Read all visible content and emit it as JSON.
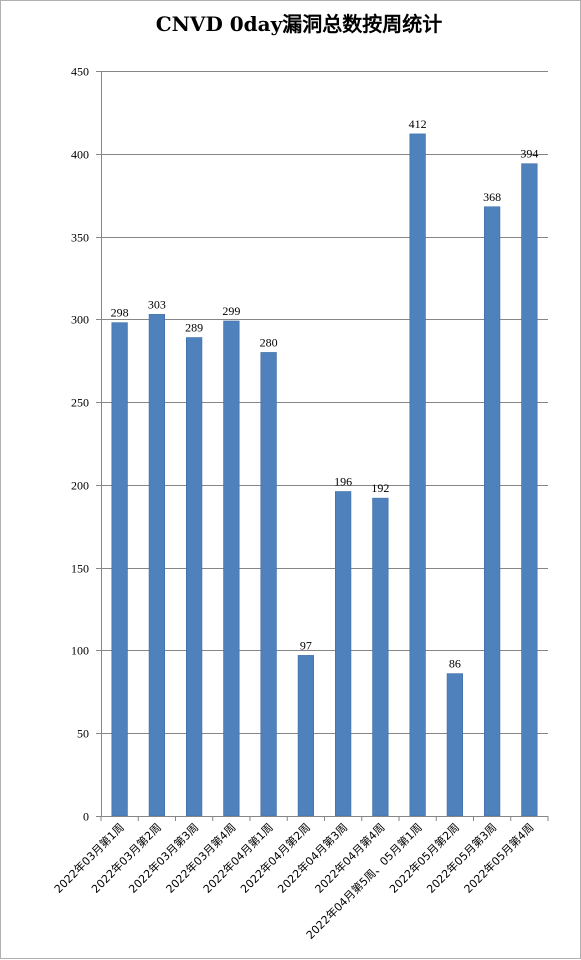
{
  "chart_data": {
    "type": "bar",
    "title": "CNVD 0day漏洞总数按周统计",
    "xlabel": "",
    "ylabel": "",
    "ylim": [
      0,
      450
    ],
    "yticks": [
      0,
      50,
      100,
      150,
      200,
      250,
      300,
      350,
      400,
      450
    ],
    "grid": true,
    "legend": "none",
    "bar_color": "#4f81bd",
    "categories": [
      "2022年03月第1周",
      "2022年03月第2周",
      "2022年03月第3周",
      "2022年03月第4周",
      "2022年04月第1周",
      "2022年04月第2周",
      "2022年04月第3周",
      "2022年04月第4周",
      "2022年04月第5周、05月第1周",
      "2022年05月第2周",
      "2022年05月第3周",
      "2022年05月第4周"
    ],
    "values": [
      298,
      303,
      289,
      299,
      280,
      97,
      196,
      192,
      412,
      86,
      368,
      394
    ]
  }
}
